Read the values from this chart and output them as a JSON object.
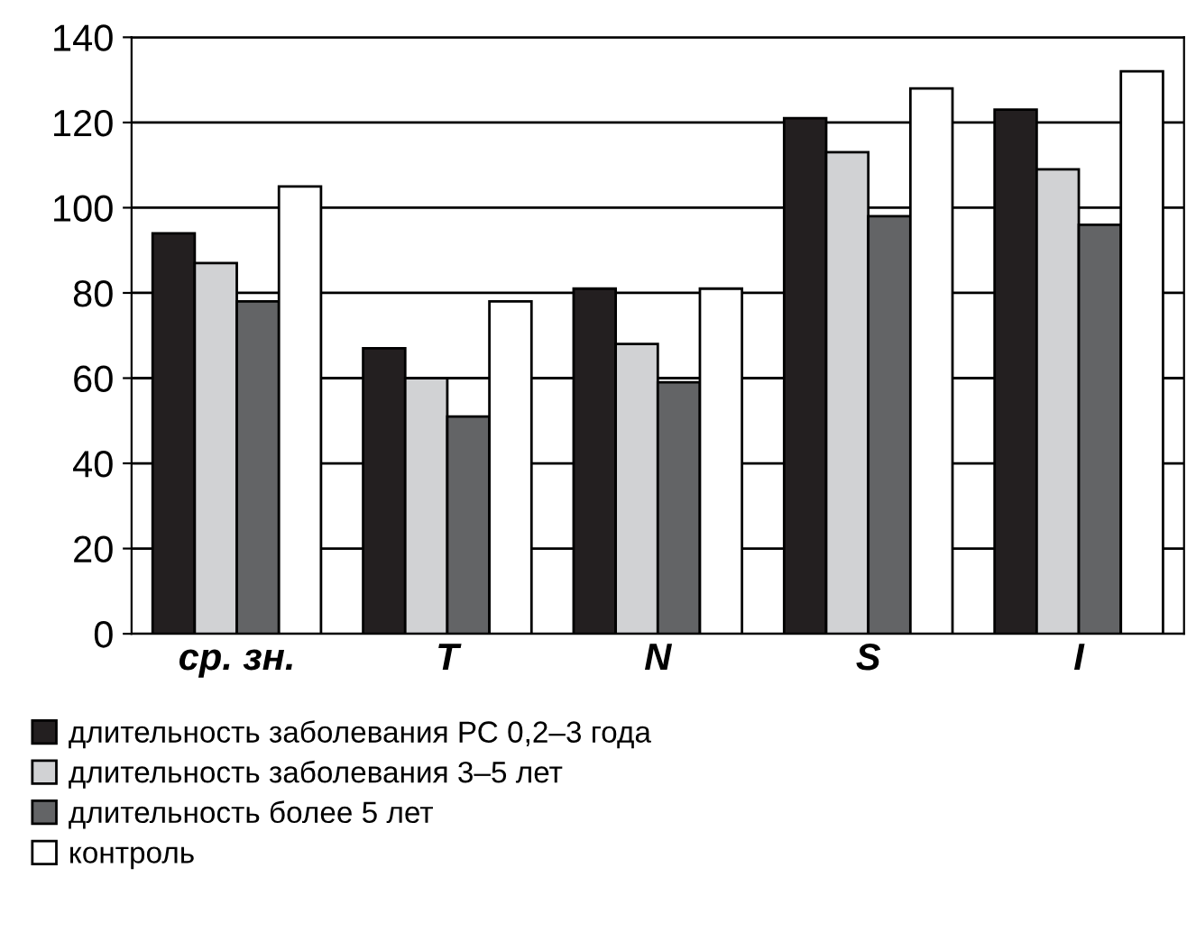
{
  "chart_data": {
    "type": "bar",
    "categories": [
      "ср. зн.",
      "T",
      "N",
      "S",
      "I"
    ],
    "series": [
      {
        "name": "длительность заболевания РС 0,2–3 года",
        "color": "#231f20",
        "values": [
          94,
          67,
          81,
          121,
          123
        ]
      },
      {
        "name": "длительность заболевания 3–5 лет",
        "color": "#d1d2d4",
        "values": [
          87,
          60,
          68,
          113,
          109
        ]
      },
      {
        "name": "длительность более 5 лет",
        "color": "#636466",
        "values": [
          78,
          51,
          59,
          98,
          96
        ]
      },
      {
        "name": "контроль",
        "color": "#ffffff",
        "values": [
          105,
          78,
          81,
          128,
          132
        ]
      }
    ],
    "ylim": [
      0,
      140
    ],
    "yticks": [
      0,
      20,
      40,
      60,
      80,
      100,
      120,
      140
    ],
    "grid": "y",
    "legend": "bottom"
  }
}
